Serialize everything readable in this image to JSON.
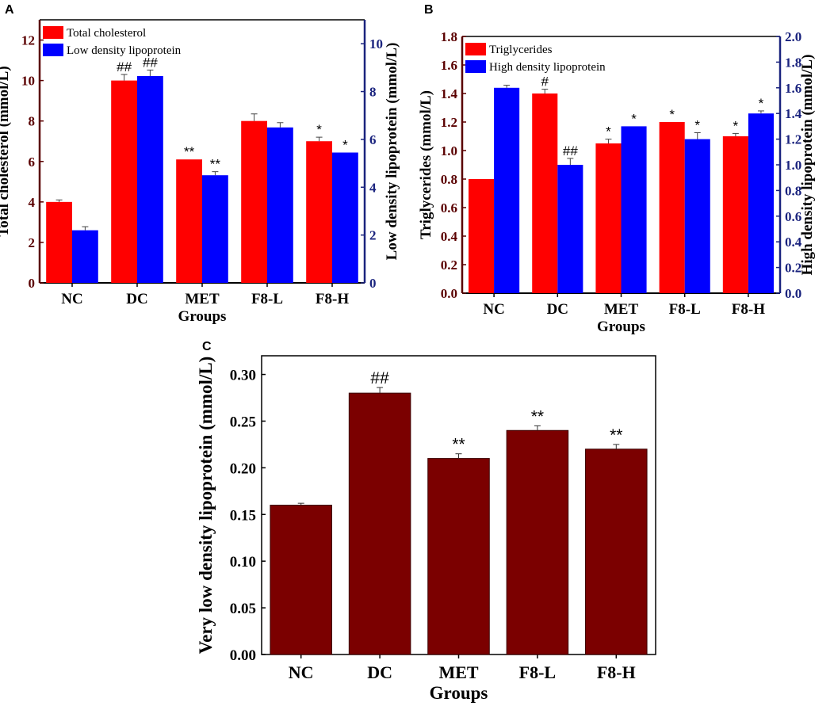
{
  "chart_data": [
    {
      "panel": "A",
      "type": "bar",
      "categories": [
        "NC",
        "DC",
        "MET",
        "F8-L",
        "F8-H"
      ],
      "xlabel": "Groups",
      "ylabel_left": "Total cholesterol (mmol/L)",
      "ylabel_right": "Low density lipoprotein (mmol/L)",
      "ylim_left": [
        0,
        13
      ],
      "yticks_left": [
        0,
        2,
        4,
        6,
        8,
        10,
        12
      ],
      "ylim_right": [
        0,
        11
      ],
      "yticks_right": [
        0,
        2,
        4,
        6,
        8,
        10
      ],
      "series": [
        {
          "name": "Total cholesterol",
          "axis": "left",
          "color": "#ff0000",
          "values": [
            4.0,
            10.0,
            6.1,
            8.0,
            7.0
          ],
          "errors": [
            0.1,
            0.3,
            0.0,
            0.35,
            0.2
          ],
          "significance": [
            "",
            "##",
            "**",
            "",
            "*"
          ]
        },
        {
          "name": "Low density lipoprotein",
          "axis": "right",
          "color": "#0000ff",
          "values": [
            2.2,
            8.65,
            4.5,
            6.5,
            5.45
          ],
          "errors": [
            0.15,
            0.25,
            0.15,
            0.2,
            0.0
          ],
          "significance": [
            "",
            "##",
            "**",
            "",
            "*"
          ]
        }
      ],
      "left_axis_color": "#5a0000",
      "right_axis_color": "#1a237e"
    },
    {
      "panel": "B",
      "type": "bar",
      "categories": [
        "NC",
        "DC",
        "MET",
        "F8-L",
        "F8-H"
      ],
      "xlabel": "Groups",
      "ylabel_left": "Triglycerides (mmol/L)",
      "ylabel_right": "High density lipoprotein (mmol/L)",
      "ylim_left": [
        0,
        1.8
      ],
      "yticks_left": [
        "0.0",
        "0.2",
        "0.4",
        "0.6",
        "0.8",
        "1.0",
        "1.2",
        "1.4",
        "1.6",
        "1.8"
      ],
      "ylim_right": [
        0,
        2.0
      ],
      "yticks_right": [
        "0.0",
        "0.2",
        "0.4",
        "0.6",
        "0.8",
        "1.0",
        "1.2",
        "1.4",
        "1.6",
        "1.8",
        "2.0"
      ],
      "series": [
        {
          "name": "Triglycerides",
          "axis": "left",
          "color": "#ff0000",
          "values": [
            0.8,
            1.4,
            1.05,
            1.2,
            1.1
          ],
          "errors": [
            0.0,
            0.03,
            0.03,
            0.0,
            0.02
          ],
          "significance": [
            "",
            "#",
            "*",
            "*",
            "*"
          ]
        },
        {
          "name": "High density lipoprotein",
          "axis": "right",
          "color": "#0000ff",
          "values": [
            1.6,
            1.0,
            1.3,
            1.2,
            1.4
          ],
          "errors": [
            0.02,
            0.05,
            0.0,
            0.05,
            0.02
          ],
          "significance": [
            "",
            "##",
            "*",
            "*",
            "*"
          ]
        }
      ],
      "left_axis_color": "#5a0000",
      "right_axis_color": "#1a237e"
    },
    {
      "panel": "C",
      "type": "bar",
      "categories": [
        "NC",
        "DC",
        "MET",
        "F8-L",
        "F8-H"
      ],
      "xlabel": "Groups",
      "ylabel": "Very low density lipoprotein (mmol/L)",
      "ylim": [
        0,
        0.32
      ],
      "yticks": [
        "0.00",
        "0.05",
        "0.10",
        "0.15",
        "0.20",
        "0.25",
        "0.30"
      ],
      "series": [
        {
          "name": "Very low density lipoprotein",
          "color": "#7b0000",
          "values": [
            0.16,
            0.28,
            0.21,
            0.24,
            0.22
          ],
          "errors": [
            0.002,
            0.006,
            0.005,
            0.005,
            0.005
          ],
          "significance": [
            "",
            "##",
            "**",
            "**",
            "**"
          ]
        }
      ]
    }
  ]
}
